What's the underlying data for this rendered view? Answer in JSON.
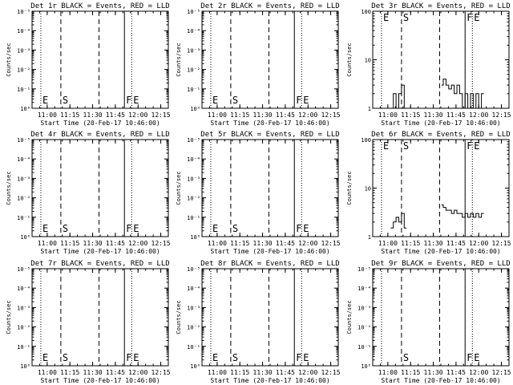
{
  "chart_data": [
    {
      "type": "line",
      "title": "Det 1r BLACK = Events, RED = LLD",
      "xlabel": "Start Time (20-Feb-17 10:46:00)",
      "ylabel": "Counts/sec",
      "yscale": "log",
      "yticks": [
        "10⁰",
        "10⁻¹",
        "10⁻²",
        "10⁻³",
        "10⁻⁴",
        "10⁻⁵"
      ],
      "xticks": [
        "11:00",
        "11:15",
        "11:30",
        "11:45",
        "12:00",
        "12:15"
      ],
      "markers": [
        {
          "label": "E",
          "x": 10.93
        },
        {
          "label": "S",
          "x": 11.15
        },
        {
          "label": "",
          "x": 11.57
        },
        {
          "label": "F",
          "x": 11.85
        },
        {
          "label": "E",
          "x": 11.93
        }
      ],
      "series": []
    },
    {
      "type": "line",
      "title": "Det 2r BLACK = Events, RED = LLD",
      "xlabel": "Start Time (20-Feb-17 10:46:00)",
      "ylabel": "Counts/sec",
      "yscale": "log",
      "yticks": [
        "10⁰",
        "10⁻¹",
        "10⁻²",
        "10⁻³",
        "10⁻⁴",
        "10⁻⁵"
      ],
      "xticks": [
        "11:00",
        "11:15",
        "11:30",
        "11:45",
        "12:00",
        "12:15"
      ],
      "markers": [
        {
          "label": "E",
          "x": 10.93
        },
        {
          "label": "S",
          "x": 11.15
        },
        {
          "label": "",
          "x": 11.57
        },
        {
          "label": "F",
          "x": 11.85
        },
        {
          "label": "E",
          "x": 11.93
        }
      ],
      "series": []
    },
    {
      "type": "line",
      "title": "Det 3r BLACK = Events, RED = LLD",
      "xlabel": "Start Time (20-Feb-17 10:46:00)",
      "ylabel": "Counts/sec",
      "yscale": "log",
      "yticks": [
        "1",
        "10",
        "100"
      ],
      "xticks": [
        "11:00",
        "11:15",
        "11:30",
        "11:45",
        "12:00",
        "12:15"
      ],
      "markers": [
        {
          "label": "E",
          "x": 10.93
        },
        {
          "label": "S",
          "x": 11.15
        },
        {
          "label": "",
          "x": 11.57
        },
        {
          "label": "F",
          "x": 11.85
        },
        {
          "label": "E",
          "x": 11.93
        }
      ],
      "series": [
        {
          "x": [
            11.03,
            11.06,
            11.09,
            11.12,
            11.15,
            11.18,
            11.59,
            11.61,
            11.64,
            11.67,
            11.7,
            11.73,
            11.76,
            11.79,
            11.82,
            11.85,
            11.88,
            11.91,
            11.94,
            11.97,
            12.0,
            12.03
          ],
          "y": [
            1,
            2,
            1,
            2,
            3,
            1,
            3,
            4,
            3,
            2.5,
            3,
            2,
            3,
            2,
            1,
            2,
            1,
            2,
            1,
            2,
            1,
            2
          ]
        }
      ]
    },
    {
      "type": "line",
      "title": "Det 4r BLACK = Events, RED = LLD",
      "xlabel": "Start Time (20-Feb-17 10:46:00)",
      "ylabel": "Counts/sec",
      "yscale": "log",
      "yticks": [
        "10⁰",
        "10⁻¹",
        "10⁻²",
        "10⁻³",
        "10⁻⁴",
        "10⁻⁵"
      ],
      "xticks": [
        "11:00",
        "11:15",
        "11:30",
        "11:45",
        "12:00",
        "12:15"
      ],
      "markers": [
        {
          "label": "E",
          "x": 10.93
        },
        {
          "label": "S",
          "x": 11.15
        },
        {
          "label": "",
          "x": 11.57
        },
        {
          "label": "F",
          "x": 11.85
        },
        {
          "label": "E",
          "x": 11.93
        }
      ],
      "series": []
    },
    {
      "type": "line",
      "title": "Det 5r BLACK = Events, RED = LLD",
      "xlabel": "Start Time (20-Feb-17 10:46:00)",
      "ylabel": "Counts/sec",
      "yscale": "log",
      "yticks": [
        "10⁰",
        "10⁻¹",
        "10⁻²",
        "10⁻³",
        "10⁻⁴",
        "10⁻⁵"
      ],
      "xticks": [
        "11:00",
        "11:15",
        "11:30",
        "11:45",
        "12:00",
        "12:15"
      ],
      "markers": [
        {
          "label": "E",
          "x": 10.93
        },
        {
          "label": "S",
          "x": 11.15
        },
        {
          "label": "",
          "x": 11.57
        },
        {
          "label": "F",
          "x": 11.85
        },
        {
          "label": "E",
          "x": 11.93
        }
      ],
      "series": []
    },
    {
      "type": "line",
      "title": "Det 6r BLACK = Events, RED = LLD",
      "xlabel": "Start Time (20-Feb-17 10:46:00)",
      "ylabel": "Counts/sec",
      "yscale": "log",
      "yticks": [
        "1",
        "10",
        "100"
      ],
      "xticks": [
        "11:00",
        "11:15",
        "11:30",
        "11:45",
        "12:00",
        "12:15"
      ],
      "markers": [
        {
          "label": "E",
          "x": 10.93
        },
        {
          "label": "S",
          "x": 11.15
        },
        {
          "label": "",
          "x": 11.57
        },
        {
          "label": "F",
          "x": 11.85
        },
        {
          "label": "E",
          "x": 11.93
        }
      ],
      "series": [
        {
          "x": [
            11.03,
            11.06,
            11.09,
            11.12,
            11.15,
            11.18,
            11.59,
            11.61,
            11.64,
            11.67,
            11.7,
            11.73,
            11.76,
            11.79,
            11.82,
            11.85,
            11.88,
            11.91,
            11.94,
            11.97,
            12.0,
            12.03
          ],
          "y": [
            1.5,
            2,
            2.5,
            2,
            3,
            1.5,
            4.5,
            4,
            3.5,
            3.5,
            3,
            3.5,
            3,
            3,
            2.5,
            3,
            2.5,
            3,
            2.5,
            3,
            2.5,
            3
          ]
        }
      ]
    },
    {
      "type": "line",
      "title": "Det 7r BLACK = Events, RED = LLD",
      "xlabel": "Start Time (20-Feb-17 10:46:00)",
      "ylabel": "Counts/sec",
      "yscale": "log",
      "yticks": [
        "10⁰",
        "10⁻¹",
        "10⁻²",
        "10⁻³",
        "10⁻⁴",
        "10⁻⁵"
      ],
      "xticks": [
        "11:00",
        "11:15",
        "11:30",
        "11:45",
        "12:00",
        "12:15"
      ],
      "markers": [
        {
          "label": "E",
          "x": 10.93
        },
        {
          "label": "S",
          "x": 11.15
        },
        {
          "label": "",
          "x": 11.57
        },
        {
          "label": "F",
          "x": 11.85
        },
        {
          "label": "E",
          "x": 11.93
        }
      ],
      "series": []
    },
    {
      "type": "line",
      "title": "Det 8r BLACK = Events, RED = LLD",
      "xlabel": "Start Time (20-Feb-17 10:46:00)",
      "ylabel": "Counts/sec",
      "yscale": "log",
      "yticks": [
        "10⁰",
        "10⁻¹",
        "10⁻²",
        "10⁻³",
        "10⁻⁴",
        "10⁻⁵"
      ],
      "xticks": [
        "11:00",
        "11:15",
        "11:30",
        "11:45",
        "12:00",
        "12:15"
      ],
      "markers": [
        {
          "label": "E",
          "x": 10.93
        },
        {
          "label": "S",
          "x": 11.15
        },
        {
          "label": "",
          "x": 11.57
        },
        {
          "label": "F",
          "x": 11.85
        },
        {
          "label": "E",
          "x": 11.93
        }
      ],
      "series": []
    },
    {
      "type": "line",
      "title": "Det 9r BLACK = Events, RED = LLD",
      "xlabel": "Start Time (20-Feb-17 10:46:00)",
      "ylabel": "Counts/sec",
      "yscale": "log",
      "yticks": [
        "10⁰",
        "10⁻¹",
        "10⁻²",
        "10⁻³",
        "10⁻⁴",
        "10⁻⁵"
      ],
      "xticks": [
        "11:00",
        "11:15",
        "11:30",
        "11:45",
        "12:00",
        "12:15"
      ],
      "markers": [
        {
          "label": "",
          "x": 10.93
        },
        {
          "label": "S",
          "x": 11.15
        },
        {
          "label": "",
          "x": 11.57
        },
        {
          "label": "F",
          "x": 11.85
        },
        {
          "label": "E",
          "x": 11.93
        }
      ],
      "series": []
    }
  ]
}
